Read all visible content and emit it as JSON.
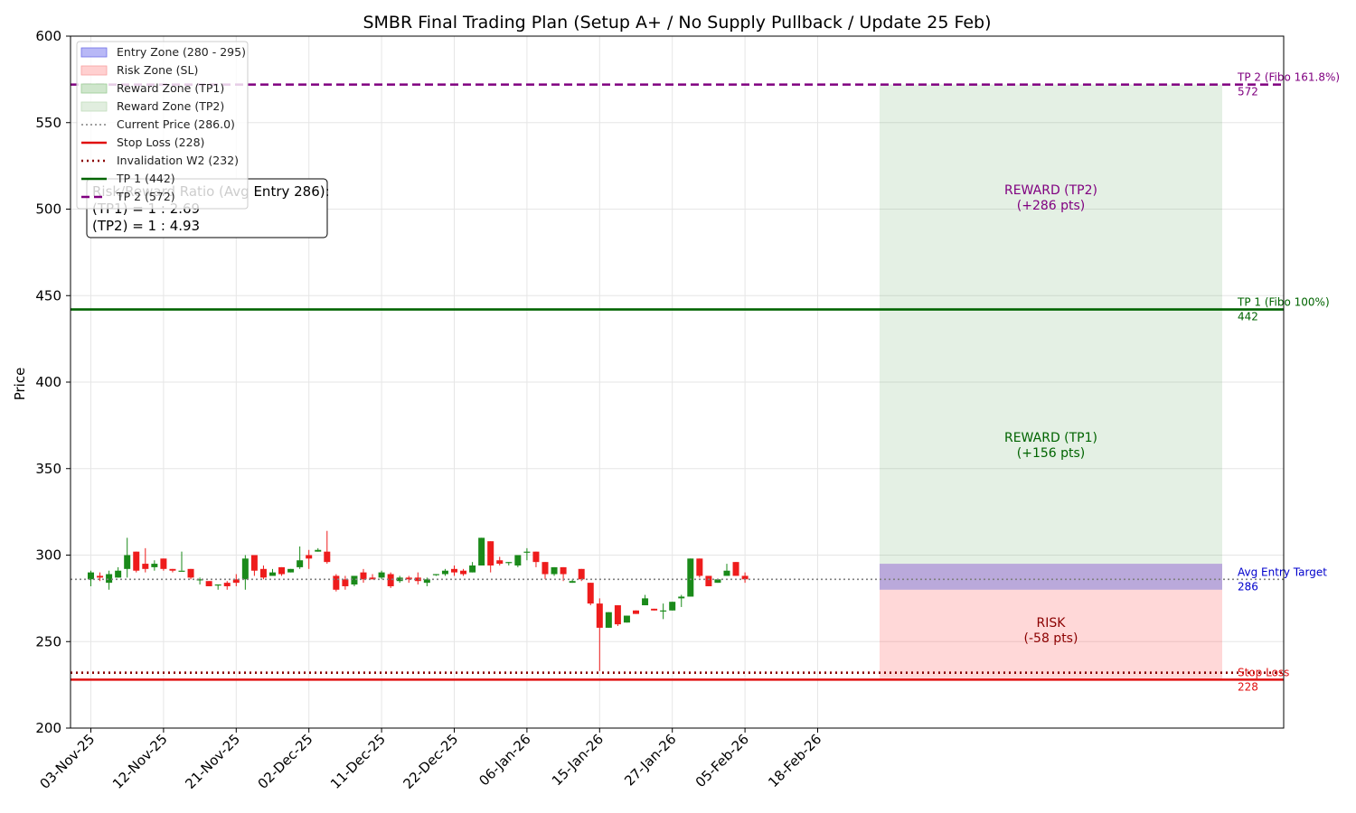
{
  "chart_data": {
    "type": "candlestick",
    "title": "SMBR Final Trading Plan (Setup A+ / No Supply Pullback / Update 25 Feb)",
    "ylabel": "Price",
    "ylim": [
      200,
      600
    ],
    "yticks": [
      200,
      250,
      300,
      350,
      400,
      450,
      500,
      550,
      600
    ],
    "grid": true,
    "legend_placement": "upper left",
    "date_ticks": [
      "03-Nov-25",
      "12-Nov-25",
      "21-Nov-25",
      "02-Dec-25",
      "11-Dec-25",
      "22-Dec-25",
      "06-Jan-26",
      "15-Jan-26",
      "27-Jan-26",
      "05-Feb-26",
      "18-Feb-26"
    ],
    "candles": [
      {
        "o": 286,
        "h": 291,
        "l": 282,
        "c": 290
      },
      {
        "o": 288,
        "h": 290,
        "l": 285,
        "c": 287
      },
      {
        "o": 284,
        "h": 291,
        "l": 280,
        "c": 289
      },
      {
        "o": 287,
        "h": 293,
        "l": 287,
        "c": 291
      },
      {
        "o": 292,
        "h": 310,
        "l": 287,
        "c": 300
      },
      {
        "o": 302,
        "h": 302,
        "l": 290,
        "c": 291
      },
      {
        "o": 295,
        "h": 304,
        "l": 290,
        "c": 292
      },
      {
        "o": 293,
        "h": 297,
        "l": 291,
        "c": 295
      },
      {
        "o": 298,
        "h": 298,
        "l": 291,
        "c": 292
      },
      {
        "o": 292,
        "h": 292,
        "l": 290,
        "c": 291
      },
      {
        "o": 291,
        "h": 302,
        "l": 291,
        "c": 291
      },
      {
        "o": 292,
        "h": 292,
        "l": 286,
        "c": 287
      },
      {
        "o": 286,
        "h": 287,
        "l": 283,
        "c": 286
      },
      {
        "o": 285,
        "h": 285,
        "l": 282,
        "c": 282
      },
      {
        "o": 283,
        "h": 283,
        "l": 280,
        "c": 283
      },
      {
        "o": 284,
        "h": 285,
        "l": 280,
        "c": 282
      },
      {
        "o": 286,
        "h": 289,
        "l": 282,
        "c": 284
      },
      {
        "o": 286,
        "h": 300,
        "l": 280,
        "c": 298
      },
      {
        "o": 300,
        "h": 300,
        "l": 288,
        "c": 291
      },
      {
        "o": 292,
        "h": 294,
        "l": 286,
        "c": 287
      },
      {
        "o": 288,
        "h": 292,
        "l": 288,
        "c": 290
      },
      {
        "o": 293,
        "h": 293,
        "l": 288,
        "c": 289
      },
      {
        "o": 290,
        "h": 292,
        "l": 290,
        "c": 292
      },
      {
        "o": 293,
        "h": 305,
        "l": 292,
        "c": 297
      },
      {
        "o": 300,
        "h": 303,
        "l": 292,
        "c": 298
      },
      {
        "o": 302,
        "h": 304,
        "l": 302,
        "c": 303
      },
      {
        "o": 302,
        "h": 314,
        "l": 295,
        "c": 296
      },
      {
        "o": 288,
        "h": 289,
        "l": 279,
        "c": 280
      },
      {
        "o": 286,
        "h": 288,
        "l": 280,
        "c": 282
      },
      {
        "o": 283,
        "h": 288,
        "l": 282,
        "c": 288
      },
      {
        "o": 290,
        "h": 292,
        "l": 284,
        "c": 286
      },
      {
        "o": 287,
        "h": 289,
        "l": 286,
        "c": 286
      },
      {
        "o": 287,
        "h": 291,
        "l": 286,
        "c": 290
      },
      {
        "o": 289,
        "h": 290,
        "l": 281,
        "c": 282
      },
      {
        "o": 285,
        "h": 288,
        "l": 284,
        "c": 287
      },
      {
        "o": 287,
        "h": 288,
        "l": 284,
        "c": 286
      },
      {
        "o": 287,
        "h": 290,
        "l": 283,
        "c": 285
      },
      {
        "o": 284,
        "h": 287,
        "l": 282,
        "c": 286
      },
      {
        "o": 289,
        "h": 289,
        "l": 288,
        "c": 289
      },
      {
        "o": 289,
        "h": 292,
        "l": 288,
        "c": 291
      },
      {
        "o": 292,
        "h": 294,
        "l": 288,
        "c": 290
      },
      {
        "o": 291,
        "h": 292,
        "l": 288,
        "c": 289
      },
      {
        "o": 290,
        "h": 296,
        "l": 290,
        "c": 294
      },
      {
        "o": 294,
        "h": 310,
        "l": 294,
        "c": 310
      },
      {
        "o": 308,
        "h": 308,
        "l": 290,
        "c": 294
      },
      {
        "o": 297,
        "h": 299,
        "l": 294,
        "c": 295
      },
      {
        "o": 296,
        "h": 296,
        "l": 294,
        "c": 296
      },
      {
        "o": 294,
        "h": 300,
        "l": 293,
        "c": 300
      },
      {
        "o": 302,
        "h": 304,
        "l": 297,
        "c": 302
      },
      {
        "o": 302,
        "h": 302,
        "l": 293,
        "c": 296
      },
      {
        "o": 296,
        "h": 296,
        "l": 286,
        "c": 289
      },
      {
        "o": 289,
        "h": 293,
        "l": 288,
        "c": 293
      },
      {
        "o": 293,
        "h": 293,
        "l": 285,
        "c": 289
      },
      {
        "o": 284,
        "h": 286,
        "l": 284,
        "c": 285
      },
      {
        "o": 292,
        "h": 292,
        "l": 285,
        "c": 286
      },
      {
        "o": 284,
        "h": 284,
        "l": 271,
        "c": 272
      },
      {
        "o": 272,
        "h": 275,
        "l": 233,
        "c": 258
      },
      {
        "o": 258,
        "h": 267,
        "l": 258,
        "c": 267
      },
      {
        "o": 271,
        "h": 271,
        "l": 259,
        "c": 260
      },
      {
        "o": 261,
        "h": 265,
        "l": 261,
        "c": 265
      },
      {
        "o": 268,
        "h": 268,
        "l": 266,
        "c": 266
      },
      {
        "o": 271,
        "h": 277,
        "l": 271,
        "c": 275
      },
      {
        "o": 269,
        "h": 269,
        "l": 268,
        "c": 268
      },
      {
        "o": 268,
        "h": 272,
        "l": 263,
        "c": 268
      },
      {
        "o": 268,
        "h": 273,
        "l": 268,
        "c": 273
      },
      {
        "o": 275,
        "h": 277,
        "l": 270,
        "c": 276
      },
      {
        "o": 276,
        "h": 298,
        "l": 276,
        "c": 298
      },
      {
        "o": 298,
        "h": 298,
        "l": 287,
        "c": 288
      },
      {
        "o": 288,
        "h": 288,
        "l": 282,
        "c": 282
      },
      {
        "o": 284,
        "h": 286,
        "l": 284,
        "c": 286
      },
      {
        "o": 288,
        "h": 295,
        "l": 288,
        "c": 291
      },
      {
        "o": 296,
        "h": 296,
        "l": 288,
        "c": 288
      },
      {
        "o": 288,
        "h": 290,
        "l": 284,
        "c": 286
      }
    ],
    "levels": {
      "entry_zone": [
        280,
        295
      ],
      "current_price": 286.0,
      "avg_entry": 286,
      "stop_loss": 228,
      "invalidation_w2": 232,
      "tp1": 442,
      "tp2": 572
    },
    "legend": [
      {
        "label": "Entry Zone (280 - 295)",
        "kind": "patch",
        "color": "#b8b8f6",
        "edge": "#7070e8"
      },
      {
        "label": "Risk Zone (SL)",
        "kind": "patch",
        "color": "#ffd0d0",
        "edge": "#f8a0a0"
      },
      {
        "label": "Reward Zone (TP1)",
        "kind": "patch",
        "color": "#cfe6cc",
        "edge": "#9ccc96"
      },
      {
        "label": "Reward Zone (TP2)",
        "kind": "patch",
        "color": "#e1eedf",
        "edge": "#c0dcbc"
      },
      {
        "label": "Current Price (286.0)",
        "kind": "line",
        "color": "#808080",
        "dash": "2,3",
        "width": 1.6
      },
      {
        "label": "Stop Loss (228)",
        "kind": "line",
        "color": "#e01010",
        "dash": "",
        "width": 2.6
      },
      {
        "label": "Invalidation W2 (232)",
        "kind": "line",
        "color": "#8b0000",
        "dash": "2,4",
        "width": 2.6
      },
      {
        "label": "TP 1 (442)",
        "kind": "line",
        "color": "#006400",
        "dash": "",
        "width": 2.6
      },
      {
        "label": "TP 2 (572)",
        "kind": "line",
        "color": "#800080",
        "dash": "9,5",
        "width": 2.6
      }
    ],
    "right_labels": [
      {
        "line1": "TP 2 (Fibo 161.8%)",
        "line2": "572",
        "value": 572,
        "color": "#800080"
      },
      {
        "line1": "TP 1 (Fibo 100%)",
        "line2": "442",
        "value": 442,
        "color": "#006400"
      },
      {
        "line1": "Avg Entry Target",
        "line2": "286",
        "value": 286,
        "color": "#0000cc"
      },
      {
        "line1": "Stop Loss",
        "line2": "228",
        "value": 228,
        "color": "#e01010"
      }
    ],
    "zone_labels": [
      {
        "line1": "REWARD (TP2)",
        "line2": "(+286 pts)",
        "value": 507,
        "color": "#800080"
      },
      {
        "line1": "REWARD (TP1)",
        "line2": "(+156 pts)",
        "value": 364,
        "color": "#006400"
      },
      {
        "line1": "RISK",
        "line2": "(-58 pts)",
        "value": 257,
        "color": "#8b0000"
      }
    ],
    "rr_box": {
      "line1": "Risk/Reward Ratio (Avg Entry 286):",
      "line2": "(TP1) = 1 : 2.69",
      "line3": "(TP2) = 1 : 4.93"
    },
    "colors": {
      "up": "#1a8a1a",
      "down": "#ee1c1c",
      "grid": "#e6e6e6"
    }
  }
}
